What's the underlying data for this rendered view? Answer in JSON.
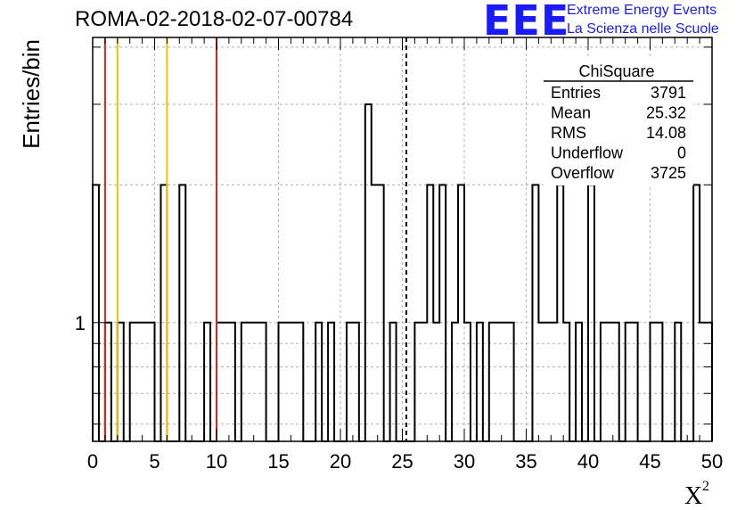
{
  "title": "ROMA-02-2018-02-07-00784",
  "logo": {
    "mark": "EEE",
    "line1": "Extreme Energy Events",
    "line2": "La Scienza nelle Scuole",
    "color": "#1a1aff"
  },
  "chart_data": {
    "type": "bar",
    "style": "step-histogram",
    "xlabel": "X",
    "xlabel_superscript": "2",
    "ylabel": "Entries/bin",
    "xlim": [
      0,
      50
    ],
    "y_scale": "log",
    "ylim": [
      0.55,
      4.2
    ],
    "x_ticks": [
      "0",
      "5",
      "10",
      "15",
      "20",
      "25",
      "30",
      "35",
      "40",
      "45",
      "50"
    ],
    "y_tick_labels": [
      {
        "value": 1,
        "label": "1"
      }
    ],
    "grid": true,
    "bin_width": 0.5,
    "bins": [
      [
        0,
        2
      ],
      [
        1,
        1
      ],
      [
        2,
        1
      ],
      [
        3,
        1
      ],
      [
        3.5,
        1
      ],
      [
        4,
        1
      ],
      [
        4.5,
        1
      ],
      [
        5.5,
        2
      ],
      [
        7,
        2
      ],
      [
        9,
        1
      ],
      [
        10,
        1
      ],
      [
        10.5,
        1
      ],
      [
        11,
        1
      ],
      [
        12,
        1
      ],
      [
        12.5,
        1
      ],
      [
        13,
        1
      ],
      [
        13.5,
        1
      ],
      [
        15,
        1
      ],
      [
        15.5,
        1
      ],
      [
        16,
        1
      ],
      [
        16.5,
        1
      ],
      [
        18,
        1
      ],
      [
        19,
        1
      ],
      [
        20.5,
        1
      ],
      [
        21,
        1
      ],
      [
        22,
        3
      ],
      [
        22.5,
        2
      ],
      [
        23,
        2
      ],
      [
        24,
        1
      ],
      [
        26,
        1
      ],
      [
        26.5,
        1
      ],
      [
        27,
        2
      ],
      [
        27.5,
        1
      ],
      [
        28,
        2
      ],
      [
        29,
        1
      ],
      [
        29.5,
        2
      ],
      [
        30,
        1
      ],
      [
        31,
        1
      ],
      [
        32,
        1
      ],
      [
        32.5,
        1
      ],
      [
        33,
        1
      ],
      [
        33.5,
        1
      ],
      [
        35.5,
        2
      ],
      [
        36,
        1
      ],
      [
        36.5,
        1
      ],
      [
        37,
        1
      ],
      [
        37.5,
        2
      ],
      [
        38,
        1
      ],
      [
        39,
        1
      ],
      [
        40,
        2
      ],
      [
        41,
        1
      ],
      [
        41.5,
        1
      ],
      [
        42,
        1
      ],
      [
        43,
        1
      ],
      [
        43.5,
        1
      ],
      [
        45,
        1
      ],
      [
        45.5,
        1
      ],
      [
        47,
        1
      ],
      [
        48.5,
        2
      ],
      [
        49,
        1
      ],
      [
        49.5,
        1
      ]
    ],
    "vertical_lines": [
      {
        "x": 1,
        "color": "#dd2222",
        "style": "solid"
      },
      {
        "x": 2,
        "color": "#f2c200",
        "style": "solid"
      },
      {
        "x": 6,
        "color": "#f2c200",
        "style": "solid"
      },
      {
        "x": 10,
        "color": "#dd2222",
        "style": "solid"
      },
      {
        "x": 25.32,
        "color": "#000000",
        "style": "dashed"
      }
    ],
    "stats_box": {
      "title": "ChiSquare",
      "rows": [
        {
          "label": "Entries",
          "value": "3791"
        },
        {
          "label": "Mean",
          "value": "25.32"
        },
        {
          "label": "RMS",
          "value": "14.08"
        },
        {
          "label": "Underflow",
          "value": "0"
        },
        {
          "label": "Overflow",
          "value": "3725"
        }
      ]
    }
  }
}
